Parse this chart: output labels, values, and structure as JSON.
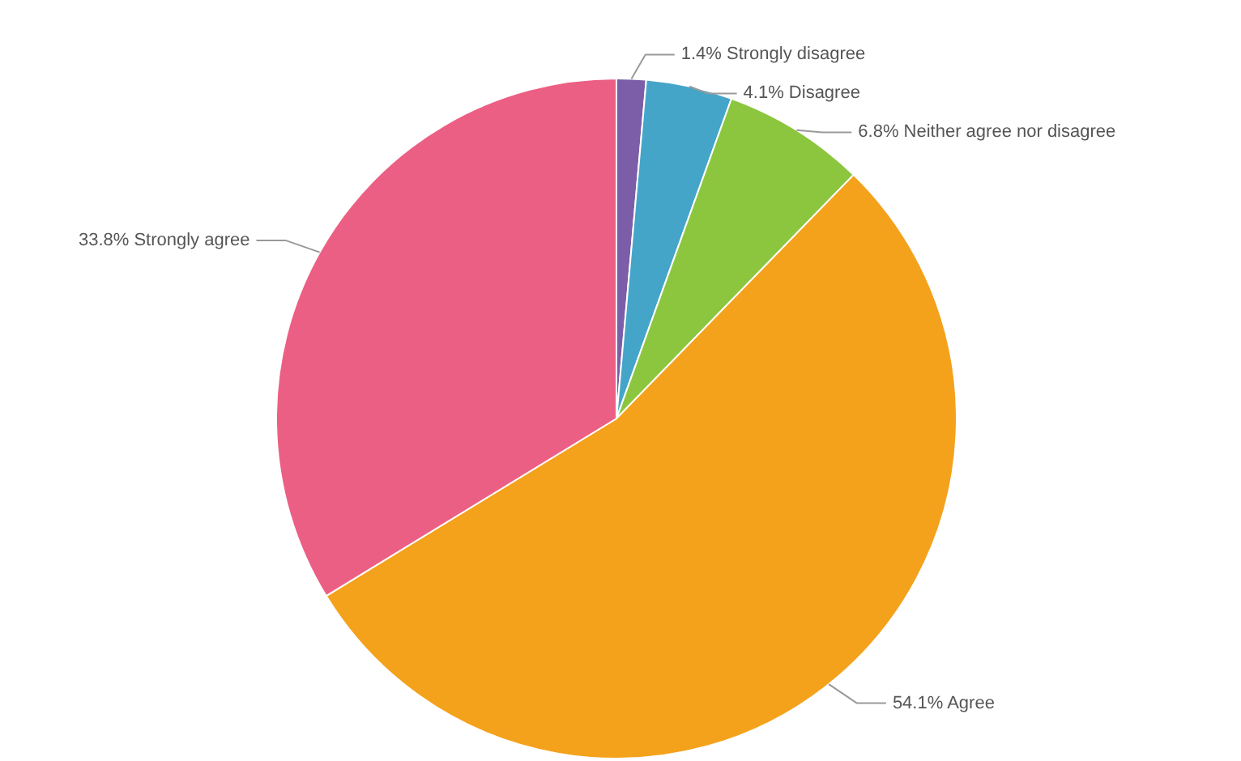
{
  "chart_data": {
    "type": "pie",
    "categories": [
      "Strongly disagree",
      "Disagree",
      "Neither agree nor disagree",
      "Agree",
      "Strongly agree"
    ],
    "values": [
      1.4,
      4.1,
      6.8,
      54.1,
      33.8
    ],
    "value_labels": [
      "1.4%",
      "4.1%",
      "6.8%",
      "54.1%",
      "33.8%"
    ],
    "colors": [
      "#7b5ea7",
      "#45a5c9",
      "#8cc63e",
      "#f4a21c",
      "#ec5f84"
    ]
  }
}
